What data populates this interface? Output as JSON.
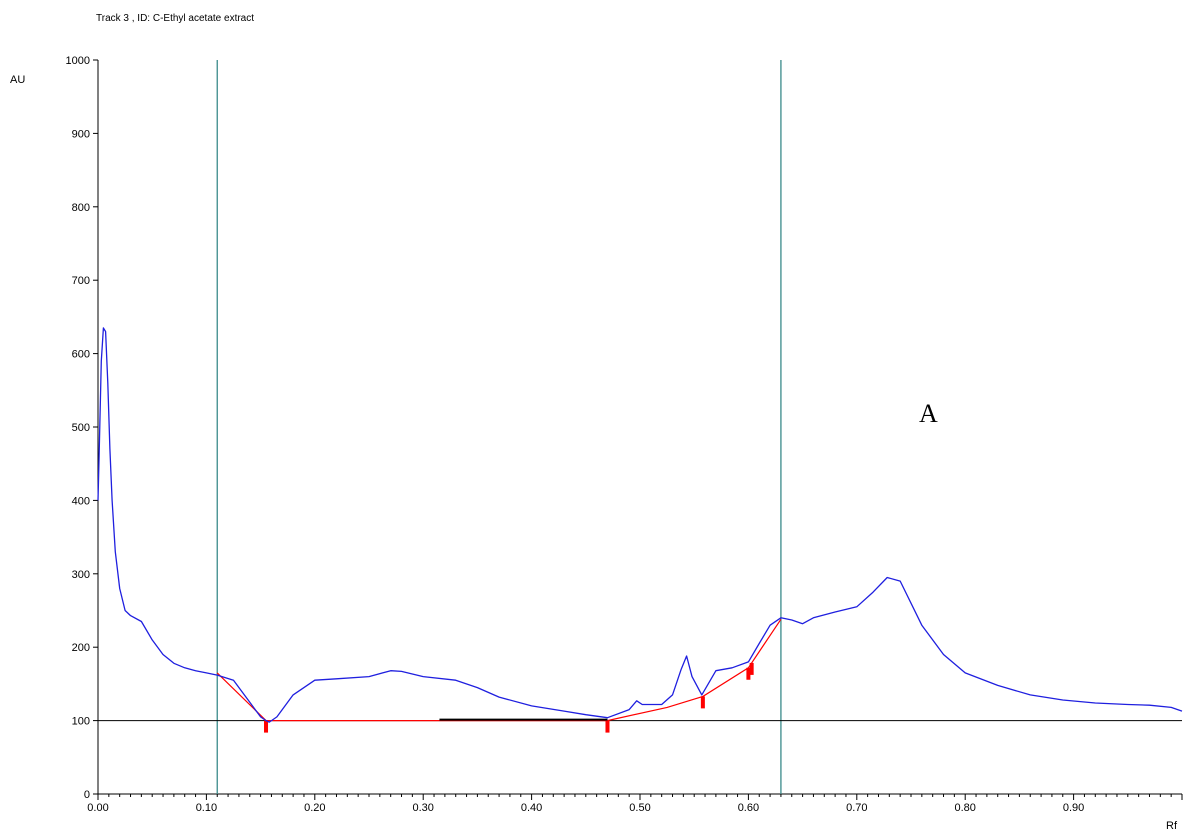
{
  "chart_data": {
    "type": "line",
    "title": "Track  3 , ID: C-Ethyl acetate extract",
    "xlabel": "Rf",
    "ylabel": "AU",
    "panel_label": "A",
    "xlim": [
      0.0,
      1.0
    ],
    "ylim": [
      0,
      1000
    ],
    "x_ticks": [
      "0.00",
      "0.10",
      "0.20",
      "0.30",
      "0.40",
      "0.50",
      "0.60",
      "0.70",
      "0.80",
      "0.90"
    ],
    "y_ticks": [
      "0",
      "100",
      "200",
      "300",
      "400",
      "500",
      "600",
      "700",
      "800",
      "900",
      "1000"
    ],
    "baseline_y": 100,
    "vertical_markers": [
      0.11,
      0.63
    ],
    "colors": {
      "curve": "#1f1fdf",
      "integration": "#ff0000",
      "markers": "#3a8a8a",
      "axis": "#000000"
    },
    "series": [
      {
        "x": [
          0.0,
          0.001,
          0.003,
          0.005,
          0.007,
          0.009,
          0.011,
          0.013,
          0.016,
          0.02,
          0.025,
          0.03,
          0.04,
          0.05,
          0.06,
          0.07,
          0.08,
          0.09,
          0.1,
          0.11,
          0.125,
          0.14,
          0.15,
          0.155,
          0.158,
          0.165,
          0.18,
          0.2,
          0.22,
          0.25,
          0.27,
          0.28,
          0.3,
          0.33,
          0.35,
          0.37,
          0.4,
          0.43,
          0.45,
          0.47,
          0.49,
          0.497,
          0.502,
          0.52,
          0.53,
          0.538,
          0.543,
          0.548,
          0.557,
          0.57,
          0.585,
          0.6,
          0.61,
          0.62,
          0.63,
          0.64,
          0.65,
          0.66,
          0.68,
          0.7,
          0.715,
          0.728,
          0.74,
          0.76,
          0.78,
          0.8,
          0.83,
          0.86,
          0.89,
          0.92,
          0.95,
          0.97,
          0.99,
          1.0
        ],
        "y": [
          400,
          460,
          590,
          635,
          630,
          560,
          470,
          400,
          330,
          280,
          250,
          243,
          235,
          210,
          190,
          178,
          172,
          168,
          165,
          162,
          155,
          125,
          105,
          100,
          98,
          105,
          135,
          155,
          157,
          160,
          168,
          167,
          160,
          155,
          145,
          132,
          120,
          113,
          108,
          104,
          115,
          127,
          122,
          122,
          135,
          170,
          188,
          160,
          135,
          168,
          172,
          180,
          205,
          230,
          240,
          237,
          232,
          240,
          248,
          255,
          275,
          295,
          290,
          230,
          190,
          165,
          148,
          135,
          128,
          124,
          122,
          121,
          118,
          113
        ]
      }
    ],
    "integration_baseline": {
      "x": [
        0.11,
        0.155,
        0.47,
        0.525,
        0.558,
        0.6,
        0.63
      ],
      "y": [
        165,
        100,
        100,
        118,
        133,
        172,
        238
      ]
    },
    "peak_markers": [
      0.155,
      0.47,
      0.558,
      0.6,
      0.603
    ]
  }
}
